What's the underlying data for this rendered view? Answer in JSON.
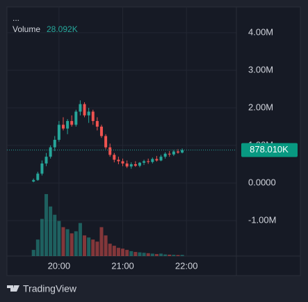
{
  "chart_data": {
    "type": "candlestick",
    "menu_label": "...",
    "x": [
      1176,
      1180,
      1184,
      1188,
      1192,
      1196,
      1200,
      1204,
      1208,
      1212,
      1216,
      1220,
      1224,
      1228,
      1232,
      1236,
      1240,
      1244,
      1248,
      1252,
      1256,
      1260,
      1264,
      1268,
      1272,
      1276,
      1280,
      1284,
      1288,
      1292,
      1296,
      1300,
      1304,
      1308,
      1312,
      1316
    ],
    "open": [
      40000,
      80000,
      250000,
      520000,
      700000,
      950000,
      1150000,
      1550000,
      1450000,
      1650000,
      1550000,
      1900000,
      2100000,
      1800000,
      1900000,
      1650000,
      1500000,
      1250000,
      950000,
      750000,
      620000,
      580000,
      520000,
      440000,
      500000,
      460000,
      540000,
      580000,
      560000,
      640000,
      600000,
      700000,
      780000,
      760000,
      840000,
      810000
    ],
    "high": [
      120000,
      300000,
      600000,
      800000,
      1000000,
      1250000,
      1650000,
      1750000,
      1700000,
      1800000,
      1950000,
      2200000,
      2150000,
      2000000,
      1950000,
      1750000,
      1550000,
      1300000,
      1050000,
      800000,
      700000,
      650000,
      600000,
      550000,
      580000,
      560000,
      620000,
      650000,
      680000,
      720000,
      750000,
      820000,
      850000,
      880000,
      900000,
      920000
    ],
    "low": [
      20000,
      60000,
      200000,
      450000,
      650000,
      850000,
      1100000,
      1400000,
      1300000,
      1500000,
      1500000,
      1800000,
      1750000,
      1600000,
      1550000,
      1400000,
      1200000,
      900000,
      700000,
      550000,
      500000,
      450000,
      400000,
      380000,
      430000,
      420000,
      480000,
      510000,
      520000,
      570000,
      580000,
      650000,
      700000,
      720000,
      780000,
      790000
    ],
    "close": [
      80000,
      250000,
      520000,
      700000,
      950000,
      1150000,
      1550000,
      1450000,
      1650000,
      1550000,
      1900000,
      2100000,
      1800000,
      1900000,
      1650000,
      1500000,
      1250000,
      950000,
      750000,
      620000,
      580000,
      520000,
      440000,
      500000,
      460000,
      540000,
      580000,
      560000,
      640000,
      600000,
      700000,
      780000,
      760000,
      840000,
      810000,
      878010
    ],
    "last_price_label": "878.010K",
    "volume": {
      "name": "Volume",
      "values": [
        150000,
        400000,
        900000,
        1500000,
        1200000,
        1000000,
        850000,
        700000,
        650000,
        550000,
        600000,
        800000,
        500000,
        450000,
        400000,
        350000,
        700000,
        500000,
        300000,
        250000,
        200000,
        180000,
        150000,
        120000,
        100000,
        90000,
        80000,
        70000,
        60000,
        50000,
        60000,
        40000,
        35000,
        30000,
        25000,
        28092
      ],
      "last_value_label": "28.092K",
      "vlim": [
        0,
        1600000
      ]
    },
    "up_color": "#26a69a",
    "down_color": "#ef5350",
    "xlim": [
      1151,
      1367
    ],
    "xticks": [
      {
        "value": 1200,
        "label": "20:00"
      },
      {
        "value": 1260,
        "label": "21:00"
      },
      {
        "value": 1320,
        "label": "22:00"
      }
    ],
    "ylim": [
      -1944000,
      4685000
    ],
    "yticks": [
      {
        "value": -1000000,
        "label": "-1.00M"
      },
      {
        "value": 0,
        "label": "0.0000"
      },
      {
        "value": 1000000,
        "label": "1.00M"
      },
      {
        "value": 2000000,
        "label": "2.00M"
      },
      {
        "value": 3000000,
        "label": "3.00M"
      },
      {
        "value": 4000000,
        "label": "4.00M"
      }
    ],
    "grid": true,
    "brand": "TradingView"
  }
}
